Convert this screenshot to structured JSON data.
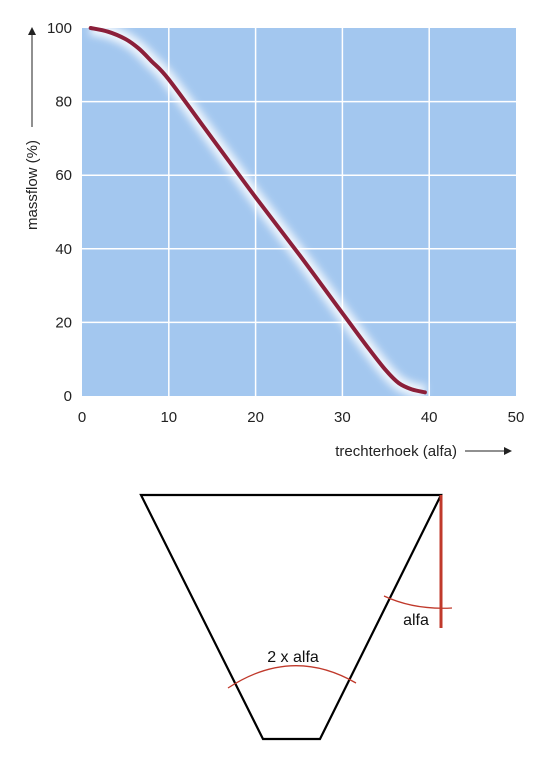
{
  "chart_data": {
    "type": "line",
    "title": "",
    "xlabel": "trechterhoek (alfa)",
    "ylabel": "massflow (%)",
    "xlim": [
      0,
      50
    ],
    "ylim": [
      0,
      100
    ],
    "x_ticks": [
      0,
      10,
      20,
      30,
      40,
      50
    ],
    "y_ticks": [
      0,
      20,
      40,
      60,
      80,
      100
    ],
    "grid": true,
    "colors": {
      "plot_background": "#a3c7ef",
      "grid": "#ffffff",
      "line": "#8b1f3a"
    },
    "series": [
      {
        "x": [
          1,
          3,
          5,
          6.5,
          8,
          10,
          15,
          20,
          25,
          30,
          33,
          35,
          36.5,
          38,
          39.5
        ],
        "y": [
          100,
          99,
          97,
          94.5,
          91,
          86,
          70,
          54,
          38.5,
          22.5,
          13,
          7,
          3.5,
          1.8,
          1
        ]
      }
    ]
  },
  "diagram": {
    "angle_label_left": "2 x alfa",
    "angle_label_right": "alfa",
    "colors": {
      "outline": "#000000",
      "angle_marker": "#c0392b",
      "vertical_line": "#c0392b"
    }
  }
}
